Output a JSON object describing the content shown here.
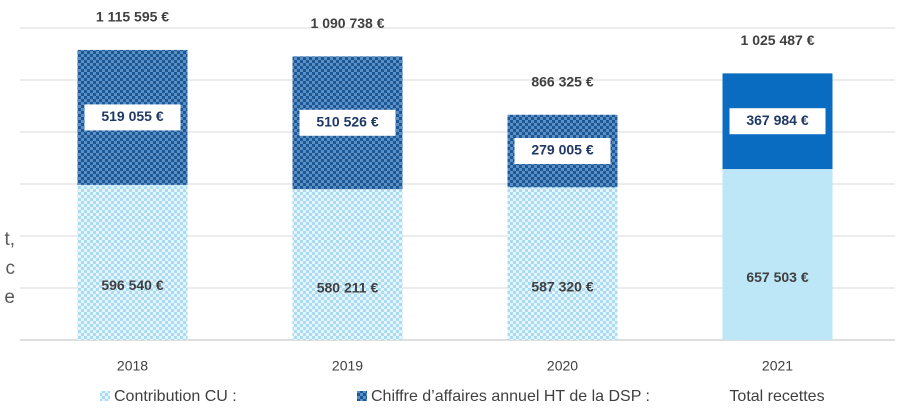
{
  "chart_data": {
    "type": "stacked_bar",
    "categories": [
      "2018",
      "2019",
      "2020",
      "2021"
    ],
    "series": [
      {
        "name": "Contribution CU :",
        "color": "#bde6f7",
        "patterned": [
          true,
          true,
          true,
          false
        ],
        "values": [
          596540,
          580211,
          587320,
          657503
        ],
        "value_labels": [
          "596 540 €",
          "580 211 €",
          "587 320 €",
          "657 503 €"
        ]
      },
      {
        "name": "Chiffre d’affaires annuel HT de la DSP :",
        "color": "#1f5f9e",
        "solid_color": "#0a6cc0",
        "patterned": [
          true,
          true,
          true,
          false
        ],
        "values": [
          519055,
          510526,
          279005,
          367984
        ],
        "value_labels": [
          "519 055 €",
          "510 526 €",
          "279 005 €",
          "367 984 €"
        ]
      }
    ],
    "totals": {
      "name": "Total recettes",
      "values": [
        1115595,
        1090738,
        866325,
        1025487
      ],
      "value_labels": [
        "1 115 595 €",
        "1 090 738 €",
        "866 325 €",
        "1 025 487 €"
      ]
    },
    "ylim": [
      0,
      1200000
    ],
    "yticks": [
      0,
      200000,
      400000,
      600000,
      800000,
      1000000,
      1200000
    ],
    "grid": true,
    "annotations": [
      "t,",
      "c",
      "e"
    ]
  }
}
